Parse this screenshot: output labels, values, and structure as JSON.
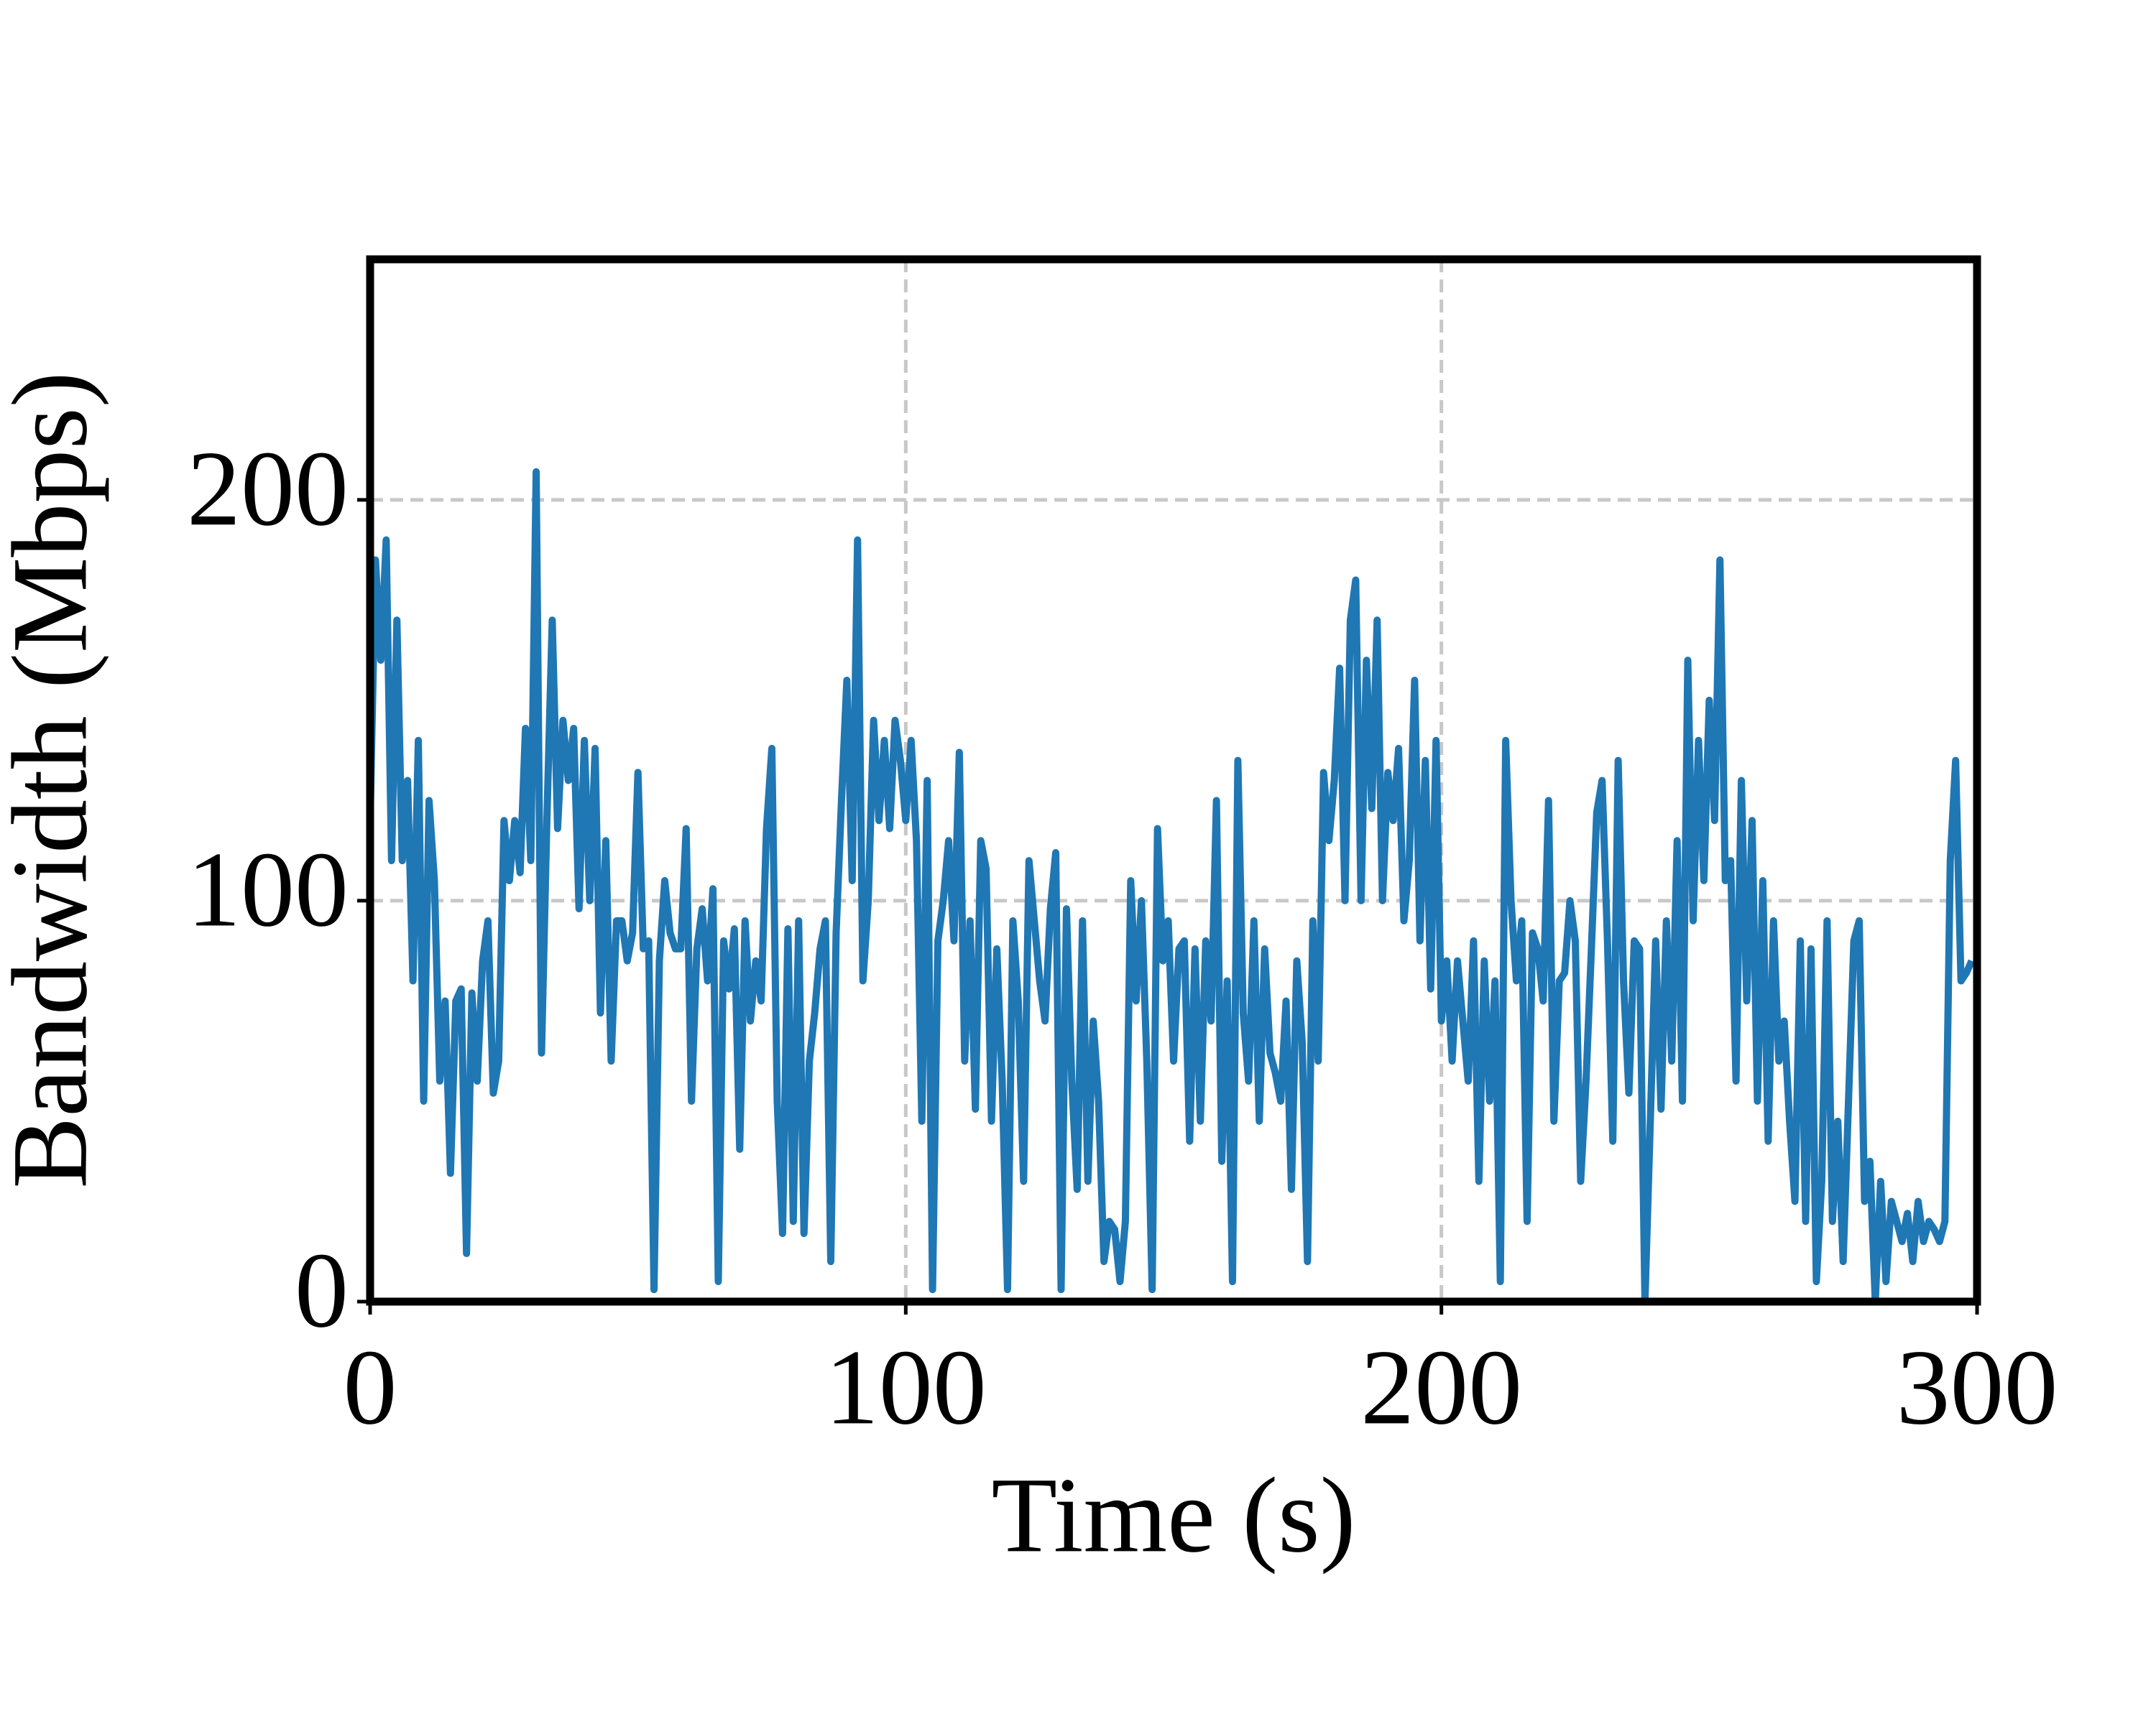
{
  "chart_data": {
    "type": "line",
    "xlabel": "Time (s)",
    "ylabel": "Bandwidth (Mbps)",
    "xlim": [
      0,
      300
    ],
    "ylim": [
      0,
      260
    ],
    "xticks": [
      0,
      100,
      200,
      300
    ],
    "yticks": [
      0,
      100,
      200
    ],
    "grid": true,
    "x": [
      0,
      1,
      2,
      3,
      4,
      5,
      6,
      7,
      8,
      9,
      10,
      11,
      12,
      13,
      14,
      15,
      16,
      17,
      18,
      19,
      20,
      21,
      22,
      23,
      24,
      25,
      26,
      27,
      28,
      29,
      30,
      31,
      32,
      33,
      34,
      35,
      36,
      37,
      38,
      39,
      40,
      41,
      42,
      43,
      44,
      45,
      46,
      47,
      48,
      49,
      50,
      51,
      52,
      53,
      54,
      55,
      56,
      57,
      58,
      59,
      60,
      61,
      62,
      63,
      64,
      65,
      66,
      67,
      68,
      69,
      70,
      71,
      72,
      73,
      74,
      75,
      76,
      77,
      78,
      79,
      80,
      81,
      82,
      83,
      84,
      85,
      86,
      87,
      88,
      89,
      90,
      91,
      92,
      93,
      94,
      95,
      96,
      97,
      98,
      99,
      100,
      101,
      102,
      103,
      104,
      105,
      106,
      107,
      108,
      109,
      110,
      111,
      112,
      113,
      114,
      115,
      116,
      117,
      118,
      119,
      120,
      121,
      122,
      123,
      124,
      125,
      126,
      127,
      128,
      129,
      130,
      131,
      132,
      133,
      134,
      135,
      136,
      137,
      138,
      139,
      140,
      141,
      142,
      143,
      144,
      145,
      146,
      147,
      148,
      149,
      150,
      151,
      152,
      153,
      154,
      155,
      156,
      157,
      158,
      159,
      160,
      161,
      162,
      163,
      164,
      165,
      166,
      167,
      168,
      169,
      170,
      171,
      172,
      173,
      174,
      175,
      176,
      177,
      178,
      179,
      180,
      181,
      182,
      183,
      184,
      185,
      186,
      187,
      188,
      189,
      190,
      191,
      192,
      193,
      194,
      195,
      196,
      197,
      198,
      199,
      200,
      201,
      202,
      203,
      204,
      205,
      206,
      207,
      208,
      209,
      210,
      211,
      212,
      213,
      214,
      215,
      216,
      217,
      218,
      219,
      220,
      221,
      222,
      223,
      224,
      225,
      226,
      227,
      228,
      229,
      230,
      231,
      232,
      233,
      234,
      235,
      236,
      237,
      238,
      239,
      240,
      241,
      242,
      243,
      244,
      245,
      246,
      247,
      248,
      249,
      250,
      251,
      252,
      253,
      254,
      255,
      256,
      257,
      258,
      259,
      260,
      261,
      262,
      263,
      264,
      265,
      266,
      267,
      268,
      269,
      270,
      271,
      272,
      273,
      274,
      275,
      276,
      277,
      278,
      279,
      280,
      281,
      282,
      283,
      284,
      285,
      286,
      287,
      288,
      289,
      290,
      291,
      292,
      293,
      294,
      295,
      296,
      297,
      298,
      299
    ],
    "series": [
      {
        "color": "#1f77b4",
        "values": [
          120,
          185,
          160,
          190,
          110,
          170,
          110,
          130,
          80,
          140,
          50,
          125,
          105,
          55,
          75,
          32,
          75,
          78,
          12,
          77,
          55,
          85,
          95,
          52,
          60,
          120,
          105,
          120,
          107,
          143,
          110,
          207,
          62,
          120,
          170,
          118,
          145,
          130,
          143,
          98,
          140,
          100,
          138,
          72,
          115,
          60,
          95,
          95,
          85,
          92,
          132,
          88,
          90,
          3,
          85,
          105,
          92,
          88,
          88,
          118,
          50,
          88,
          98,
          80,
          103,
          5,
          90,
          78,
          93,
          38,
          95,
          70,
          85,
          75,
          118,
          138,
          50,
          17,
          93,
          20,
          95,
          17,
          60,
          72,
          88,
          95,
          10,
          92,
          125,
          155,
          105,
          190,
          80,
          100,
          145,
          120,
          140,
          118,
          145,
          135,
          120,
          140,
          115,
          45,
          130,
          3,
          90,
          100,
          115,
          90,
          137,
          60,
          95,
          48,
          115,
          108,
          45,
          88,
          55,
          3,
          95,
          75,
          30,
          110,
          95,
          80,
          70,
          98,
          112,
          3,
          98,
          55,
          28,
          95,
          30,
          70,
          50,
          10,
          20,
          18,
          5,
          20,
          105,
          75,
          100,
          60,
          3,
          118,
          85,
          95,
          60,
          88,
          90,
          40,
          88,
          45,
          90,
          70,
          125,
          35,
          80,
          5,
          135,
          72,
          55,
          95,
          45,
          88,
          62,
          57,
          50,
          75,
          28,
          85,
          65,
          10,
          95,
          60,
          132,
          115,
          130,
          158,
          100,
          170,
          180,
          100,
          160,
          123,
          170,
          100,
          132,
          120,
          138,
          95,
          110,
          155,
          90,
          135,
          78,
          140,
          70,
          85,
          60,
          85,
          70,
          55,
          90,
          30,
          85,
          50,
          80,
          5,
          140,
          100,
          80,
          95,
          20,
          92,
          88,
          75,
          125,
          45,
          80,
          82,
          100,
          90,
          30,
          55,
          88,
          122,
          130,
          90,
          40,
          135,
          80,
          52,
          90,
          88,
          0,
          45,
          90,
          48,
          95,
          60,
          115,
          50,
          160,
          95,
          140,
          105,
          150,
          120,
          185,
          105,
          110,
          55,
          130,
          75,
          120,
          50,
          105,
          40,
          95,
          60,
          70,
          45,
          25,
          90,
          20,
          88,
          5,
          30,
          95,
          20,
          45,
          10,
          50,
          90,
          95,
          25,
          35,
          0,
          30,
          5,
          25,
          20,
          15,
          22,
          10,
          25,
          15,
          20,
          18,
          15,
          20,
          110,
          135,
          80,
          82,
          85
        ]
      }
    ]
  }
}
